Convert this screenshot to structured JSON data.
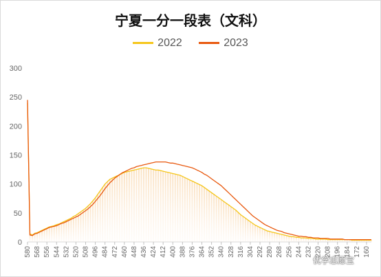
{
  "chart_data": {
    "type": "line",
    "title": "宁夏一分一段表（文科）",
    "xlabel": "",
    "ylabel": "",
    "ylim": [
      0,
      300
    ],
    "yticks": [
      0,
      50,
      100,
      150,
      200,
      250,
      300
    ],
    "x_reversed": true,
    "x_tick_labels": [
      "580",
      "568",
      "556",
      "544",
      "532",
      "520",
      "508",
      "496",
      "484",
      "472",
      "460",
      "448",
      "436",
      "424",
      "412",
      "400",
      "388",
      "376",
      "364",
      "352",
      "340",
      "328",
      "316",
      "304",
      "292",
      "280",
      "268",
      "256",
      "244",
      "232",
      "220",
      "208",
      "196",
      "184",
      "172",
      "160"
    ],
    "x": [
      580,
      577,
      574,
      571,
      568,
      565,
      562,
      559,
      556,
      553,
      550,
      547,
      544,
      541,
      538,
      535,
      532,
      529,
      526,
      523,
      520,
      517,
      514,
      511,
      508,
      505,
      502,
      499,
      496,
      493,
      490,
      487,
      484,
      481,
      478,
      475,
      472,
      469,
      466,
      463,
      460,
      457,
      454,
      451,
      448,
      445,
      442,
      439,
      436,
      433,
      430,
      427,
      424,
      421,
      418,
      415,
      412,
      409,
      406,
      403,
      400,
      397,
      394,
      391,
      388,
      385,
      382,
      379,
      376,
      373,
      370,
      367,
      364,
      361,
      358,
      355,
      352,
      349,
      346,
      343,
      340,
      337,
      334,
      331,
      328,
      325,
      322,
      319,
      316,
      313,
      310,
      307,
      304,
      301,
      298,
      295,
      292,
      289,
      286,
      283,
      280,
      277,
      274,
      271,
      268,
      265,
      262,
      259,
      256,
      253,
      250,
      247,
      244,
      241,
      238,
      235,
      232,
      229,
      226,
      223,
      220,
      217,
      214,
      211,
      208,
      205,
      202,
      199,
      196,
      193,
      190,
      187,
      184,
      181,
      178,
      175,
      172,
      169,
      166,
      163,
      160,
      157,
      154
    ],
    "series": [
      {
        "name": "2022",
        "color": "#f5c518",
        "values": [
          240,
          14,
          12,
          15,
          16,
          18,
          20,
          22,
          24,
          26,
          27,
          28,
          30,
          31,
          33,
          35,
          37,
          39,
          41,
          44,
          46,
          49,
          52,
          55,
          58,
          62,
          66,
          71,
          76,
          82,
          88,
          94,
          100,
          104,
          108,
          110,
          112,
          114,
          116,
          118,
          120,
          121,
          122,
          123,
          124,
          125,
          126,
          127,
          128,
          128,
          127,
          126,
          125,
          124,
          124,
          123,
          122,
          121,
          120,
          119,
          118,
          117,
          116,
          115,
          113,
          111,
          109,
          107,
          105,
          103,
          101,
          99,
          97,
          94,
          91,
          88,
          85,
          82,
          79,
          76,
          73,
          70,
          67,
          64,
          61,
          58,
          55,
          51,
          47,
          44,
          41,
          38,
          35,
          32,
          29,
          27,
          25,
          23,
          21,
          19,
          18,
          17,
          16,
          15,
          14,
          13,
          12,
          11,
          10,
          9,
          9,
          8,
          8,
          7,
          7,
          7,
          6,
          6,
          6,
          5,
          5,
          5,
          5,
          5,
          4,
          4,
          4,
          4,
          4,
          4,
          4,
          4,
          4,
          4,
          3,
          3,
          3,
          3,
          3,
          3,
          3,
          3,
          3
        ]
      },
      {
        "name": "2023",
        "color": "#e8570c",
        "values": [
          245,
          12,
          11,
          14,
          15,
          17,
          19,
          21,
          23,
          25,
          26,
          27,
          28,
          30,
          32,
          33,
          35,
          37,
          39,
          41,
          43,
          45,
          48,
          51,
          54,
          57,
          61,
          65,
          70,
          75,
          80,
          86,
          92,
          97,
          102,
          106,
          110,
          113,
          116,
          119,
          121,
          123,
          125,
          127,
          128,
          130,
          131,
          132,
          133,
          134,
          135,
          136,
          137,
          138,
          138,
          138,
          138,
          138,
          137,
          136,
          136,
          135,
          134,
          133,
          132,
          131,
          130,
          129,
          128,
          126,
          124,
          122,
          120,
          117,
          115,
          112,
          109,
          106,
          103,
          100,
          97,
          93,
          89,
          85,
          81,
          77,
          73,
          69,
          65,
          61,
          57,
          53,
          49,
          45,
          42,
          39,
          36,
          33,
          30,
          28,
          26,
          24,
          22,
          20,
          19,
          18,
          16,
          15,
          14,
          13,
          12,
          11,
          10,
          10,
          9,
          9,
          8,
          8,
          7,
          7,
          7,
          6,
          6,
          6,
          6,
          5,
          5,
          5,
          5,
          5,
          5,
          4,
          4,
          4,
          4,
          4,
          4,
          4,
          4,
          4,
          4,
          4,
          4
        ]
      }
    ],
    "legend_position": "top-center",
    "grid": false
  },
  "watermark": "优学志愿宝"
}
